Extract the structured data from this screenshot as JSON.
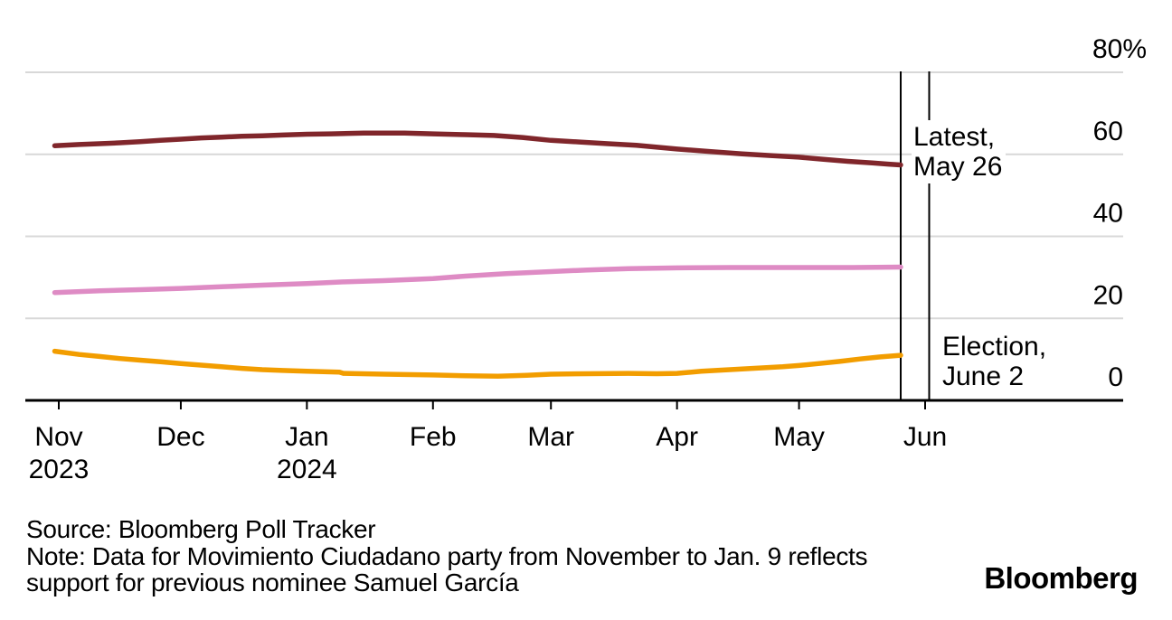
{
  "chart_data": {
    "type": "line",
    "title": "",
    "x_axis": {
      "unit": "days since Nov 1 2023",
      "tick_days": [
        0,
        30,
        61,
        92,
        121,
        152,
        182,
        213
      ],
      "tick_labels": [
        "Nov",
        "Dec",
        "Jan",
        "Feb",
        "Mar",
        "Apr",
        "May",
        "Jun"
      ],
      "tick_sublabels": [
        "2023",
        "",
        "2024",
        "",
        "",
        "",
        "",
        ""
      ],
      "range_days": [
        -1,
        262
      ]
    },
    "y_axis": {
      "unit": "%",
      "range": [
        0,
        80
      ],
      "ticks": [
        80,
        60,
        40,
        20,
        0
      ],
      "tick_labels": [
        "80%",
        "60",
        "40",
        "20",
        "0"
      ],
      "grid": true,
      "grid_color": "#D8D8D8",
      "axis_color": "#000000"
    },
    "series": [
      {
        "name": "series_maroon",
        "color": "#80262B",
        "points": [
          [
            -1,
            62.1
          ],
          [
            5,
            62.4
          ],
          [
            10,
            62.6
          ],
          [
            15,
            62.8
          ],
          [
            20,
            63.1
          ],
          [
            25,
            63.4
          ],
          [
            30,
            63.7
          ],
          [
            35,
            64.0
          ],
          [
            40,
            64.2
          ],
          [
            45,
            64.4
          ],
          [
            50,
            64.5
          ],
          [
            55,
            64.7
          ],
          [
            61,
            64.9
          ],
          [
            67,
            65.0
          ],
          [
            75,
            65.2
          ],
          [
            85,
            65.2
          ],
          [
            92,
            65.0
          ],
          [
            100,
            64.8
          ],
          [
            107,
            64.6
          ],
          [
            114,
            64.1
          ],
          [
            121,
            63.4
          ],
          [
            128,
            63.0
          ],
          [
            135,
            62.6
          ],
          [
            142,
            62.2
          ],
          [
            152,
            61.3
          ],
          [
            160,
            60.7
          ],
          [
            168,
            60.1
          ],
          [
            175,
            59.7
          ],
          [
            182,
            59.3
          ],
          [
            188,
            58.8
          ],
          [
            194,
            58.3
          ],
          [
            200,
            57.9
          ],
          [
            204,
            57.6
          ],
          [
            207,
            57.4
          ]
        ]
      },
      {
        "name": "series_pink",
        "color": "#DE8BC4",
        "points": [
          [
            -1,
            26.3
          ],
          [
            10,
            26.7
          ],
          [
            20,
            27.0
          ],
          [
            30,
            27.3
          ],
          [
            40,
            27.7
          ],
          [
            50,
            28.1
          ],
          [
            61,
            28.5
          ],
          [
            70,
            28.9
          ],
          [
            80,
            29.2
          ],
          [
            92,
            29.7
          ],
          [
            100,
            30.3
          ],
          [
            110,
            30.9
          ],
          [
            121,
            31.4
          ],
          [
            130,
            31.8
          ],
          [
            140,
            32.1
          ],
          [
            152,
            32.3
          ],
          [
            165,
            32.4
          ],
          [
            182,
            32.4
          ],
          [
            195,
            32.4
          ],
          [
            207,
            32.5
          ]
        ]
      },
      {
        "name": "series_orange",
        "color": "#F29D00",
        "points": [
          [
            -1,
            12.0
          ],
          [
            5,
            11.2
          ],
          [
            10,
            10.7
          ],
          [
            15,
            10.2
          ],
          [
            20,
            9.8
          ],
          [
            25,
            9.4
          ],
          [
            30,
            9.0
          ],
          [
            35,
            8.6
          ],
          [
            40,
            8.2
          ],
          [
            45,
            7.8
          ],
          [
            50,
            7.5
          ],
          [
            55,
            7.3
          ],
          [
            61,
            7.1
          ],
          [
            65,
            7.0
          ],
          [
            69,
            6.9
          ],
          [
            70,
            6.6
          ],
          [
            80,
            6.4
          ],
          [
            92,
            6.2
          ],
          [
            100,
            6.0
          ],
          [
            108,
            5.9
          ],
          [
            115,
            6.1
          ],
          [
            121,
            6.4
          ],
          [
            130,
            6.5
          ],
          [
            140,
            6.6
          ],
          [
            147,
            6.5
          ],
          [
            152,
            6.6
          ],
          [
            158,
            7.1
          ],
          [
            165,
            7.5
          ],
          [
            172,
            7.9
          ],
          [
            178,
            8.2
          ],
          [
            182,
            8.5
          ],
          [
            187,
            9.0
          ],
          [
            192,
            9.5
          ],
          [
            197,
            10.1
          ],
          [
            202,
            10.6
          ],
          [
            207,
            11.0
          ]
        ]
      }
    ],
    "event_lines": [
      {
        "day": 207,
        "color": "#000000"
      },
      {
        "day": 214,
        "color": "#000000"
      }
    ]
  },
  "annotations": {
    "latest": {
      "line1": "Latest,",
      "line2": "May 26"
    },
    "election": {
      "line1": "Election,",
      "line2": "June 2"
    }
  },
  "footer": {
    "source": "Source: Bloomberg Poll Tracker",
    "note_lines": [
      "Note: Data for Movimiento Ciudadano party from November to Jan. 9 reflects",
      "support for previous nominee Samuel García"
    ]
  },
  "logo": "Bloomberg"
}
